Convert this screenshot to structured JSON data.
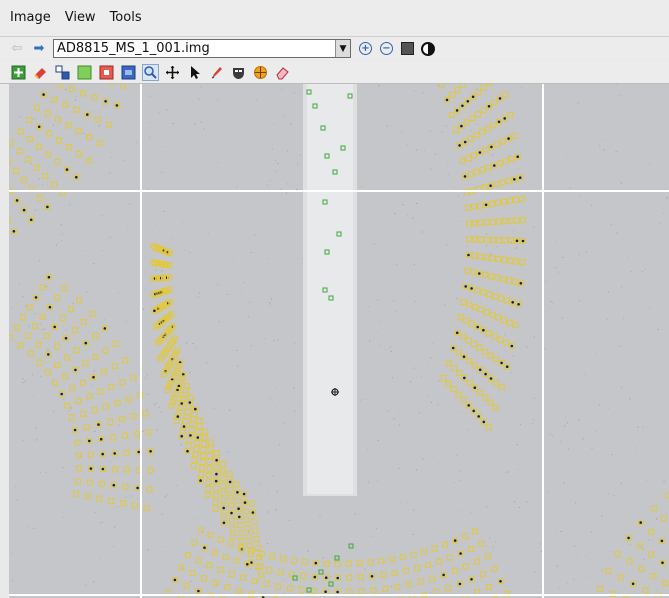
{
  "menu": {
    "items": [
      "Image",
      "View",
      "Tools"
    ]
  },
  "navigation": {
    "back_icon": "arrow-left-icon",
    "forward_icon": "arrow-right-icon",
    "file_name": "AD8815_MS_1_001.img"
  },
  "view_controls": [
    "zoom-in-icon",
    "zoom-out-icon",
    "fit-to-window-icon",
    "contrast-icon"
  ],
  "toolbar": {
    "tools": [
      "add-spot-icon",
      "erase-icon",
      "cluster-icon",
      "box-green-icon",
      "box-red-icon",
      "box-blue-icon",
      "zoom-tool-icon",
      "pan-icon",
      "pointer-icon",
      "pen-icon",
      "mask-icon",
      "target-icon",
      "eraser-icon"
    ],
    "active_tool": "zoom-tool-icon"
  },
  "image": {
    "type": "diffraction pattern",
    "colors": {
      "background": "#c4c6c9",
      "predicted_spot": "#e2c83d",
      "found_spot": "#41a83a",
      "grid_line": "#ffffff"
    }
  }
}
